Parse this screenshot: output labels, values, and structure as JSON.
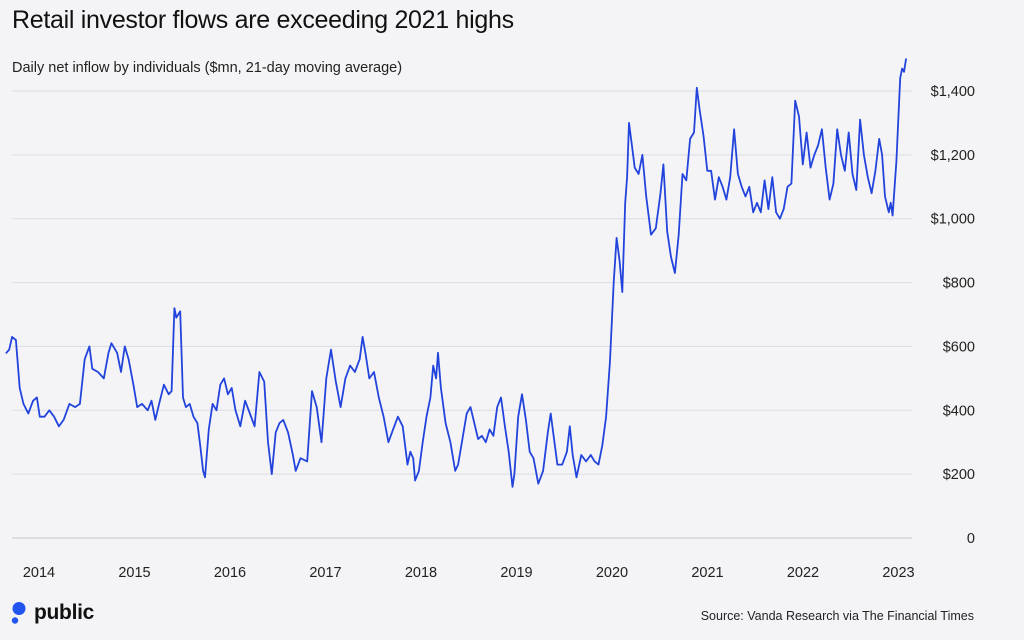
{
  "title": "Retail investor flows are exceeding 2021 highs",
  "subtitle": "Daily net inflow by individuals ($mn, 21-day moving average)",
  "source": "Source: Vanda Research via The Financial Times",
  "brand": {
    "name": "public",
    "color": "#2255f0"
  },
  "chart_data": {
    "type": "line",
    "title": "Retail investor flows are exceeding 2021 highs",
    "subtitle": "Daily net inflow by individuals ($mn, 21-day moving average)",
    "xlabel": "",
    "ylabel": "",
    "ylim": [
      0,
      1500
    ],
    "xlim": [
      2013.7,
      2023.2
    ],
    "grid": true,
    "legend": "none",
    "line_color": "#2244dd",
    "y_ticks": [
      0,
      200,
      400,
      600,
      800,
      1000,
      1200,
      1400
    ],
    "y_tick_labels": [
      "0",
      "$200",
      "$400",
      "$600",
      "$800",
      "$1,000",
      "$1,200",
      "$1,400"
    ],
    "x_ticks": [
      2014,
      2015,
      2016,
      2017,
      2018,
      2019,
      2020,
      2021,
      2022,
      2023
    ],
    "x_tick_labels": [
      "2014",
      "2015",
      "2016",
      "2017",
      "2018",
      "2019",
      "2020",
      "2021",
      "2022",
      "2023"
    ],
    "series": [
      {
        "points": [
          [
            2013.7,
            580
          ],
          [
            2013.73,
            590
          ],
          [
            2013.76,
            630
          ],
          [
            2013.8,
            620
          ],
          [
            2013.84,
            470
          ],
          [
            2013.88,
            420
          ],
          [
            2013.93,
            390
          ],
          [
            2013.98,
            430
          ],
          [
            2014.02,
            440
          ],
          [
            2014.05,
            380
          ],
          [
            2014.1,
            380
          ],
          [
            2014.15,
            400
          ],
          [
            2014.2,
            380
          ],
          [
            2014.25,
            350
          ],
          [
            2014.3,
            370
          ],
          [
            2014.36,
            420
          ],
          [
            2014.42,
            410
          ],
          [
            2014.47,
            420
          ],
          [
            2014.52,
            560
          ],
          [
            2014.57,
            600
          ],
          [
            2014.6,
            530
          ],
          [
            2014.66,
            520
          ],
          [
            2014.72,
            500
          ],
          [
            2014.77,
            580
          ],
          [
            2014.8,
            610
          ],
          [
            2014.86,
            580
          ],
          [
            2014.9,
            520
          ],
          [
            2014.94,
            600
          ],
          [
            2014.98,
            560
          ],
          [
            2015.03,
            480
          ],
          [
            2015.07,
            410
          ],
          [
            2015.12,
            420
          ],
          [
            2015.18,
            400
          ],
          [
            2015.22,
            430
          ],
          [
            2015.26,
            370
          ],
          [
            2015.3,
            420
          ],
          [
            2015.35,
            480
          ],
          [
            2015.4,
            450
          ],
          [
            2015.43,
            460
          ],
          [
            2015.46,
            720
          ],
          [
            2015.48,
            690
          ],
          [
            2015.52,
            710
          ],
          [
            2015.55,
            440
          ],
          [
            2015.58,
            410
          ],
          [
            2015.62,
            420
          ],
          [
            2015.66,
            380
          ],
          [
            2015.7,
            360
          ],
          [
            2015.73,
            290
          ],
          [
            2015.76,
            210
          ],
          [
            2015.78,
            190
          ],
          [
            2015.82,
            340
          ],
          [
            2015.86,
            420
          ],
          [
            2015.9,
            400
          ],
          [
            2015.94,
            480
          ],
          [
            2015.98,
            500
          ],
          [
            2016.02,
            450
          ],
          [
            2016.06,
            470
          ],
          [
            2016.1,
            400
          ],
          [
            2016.15,
            350
          ],
          [
            2016.2,
            430
          ],
          [
            2016.25,
            390
          ],
          [
            2016.3,
            350
          ],
          [
            2016.35,
            520
          ],
          [
            2016.4,
            490
          ],
          [
            2016.44,
            300
          ],
          [
            2016.48,
            200
          ],
          [
            2016.52,
            330
          ],
          [
            2016.56,
            360
          ],
          [
            2016.6,
            370
          ],
          [
            2016.65,
            330
          ],
          [
            2016.7,
            260
          ],
          [
            2016.73,
            210
          ],
          [
            2016.78,
            250
          ],
          [
            2016.85,
            240
          ],
          [
            2016.9,
            460
          ],
          [
            2016.95,
            410
          ],
          [
            2017.0,
            300
          ],
          [
            2017.05,
            500
          ],
          [
            2017.1,
            590
          ],
          [
            2017.15,
            490
          ],
          [
            2017.2,
            410
          ],
          [
            2017.25,
            500
          ],
          [
            2017.3,
            540
          ],
          [
            2017.35,
            520
          ],
          [
            2017.4,
            560
          ],
          [
            2017.43,
            630
          ],
          [
            2017.46,
            580
          ],
          [
            2017.5,
            500
          ],
          [
            2017.55,
            520
          ],
          [
            2017.6,
            440
          ],
          [
            2017.65,
            380
          ],
          [
            2017.7,
            300
          ],
          [
            2017.75,
            340
          ],
          [
            2017.8,
            380
          ],
          [
            2017.85,
            350
          ],
          [
            2017.9,
            230
          ],
          [
            2017.93,
            270
          ],
          [
            2017.96,
            250
          ],
          [
            2017.98,
            180
          ],
          [
            2018.02,
            210
          ],
          [
            2018.06,
            300
          ],
          [
            2018.1,
            380
          ],
          [
            2018.14,
            440
          ],
          [
            2018.17,
            540
          ],
          [
            2018.2,
            500
          ],
          [
            2018.22,
            580
          ],
          [
            2018.25,
            470
          ],
          [
            2018.3,
            360
          ],
          [
            2018.35,
            300
          ],
          [
            2018.4,
            210
          ],
          [
            2018.43,
            230
          ],
          [
            2018.47,
            300
          ],
          [
            2018.52,
            390
          ],
          [
            2018.56,
            410
          ],
          [
            2018.6,
            360
          ],
          [
            2018.64,
            310
          ],
          [
            2018.68,
            320
          ],
          [
            2018.72,
            300
          ],
          [
            2018.76,
            340
          ],
          [
            2018.8,
            320
          ],
          [
            2018.84,
            410
          ],
          [
            2018.88,
            440
          ],
          [
            2018.92,
            350
          ],
          [
            2018.96,
            270
          ],
          [
            2019.0,
            160
          ],
          [
            2019.02,
            200
          ],
          [
            2019.06,
            380
          ],
          [
            2019.1,
            450
          ],
          [
            2019.14,
            370
          ],
          [
            2019.18,
            270
          ],
          [
            2019.22,
            250
          ],
          [
            2019.27,
            170
          ],
          [
            2019.32,
            210
          ],
          [
            2019.37,
            330
          ],
          [
            2019.4,
            390
          ],
          [
            2019.43,
            320
          ],
          [
            2019.47,
            230
          ],
          [
            2019.52,
            230
          ],
          [
            2019.57,
            270
          ],
          [
            2019.6,
            350
          ],
          [
            2019.63,
            260
          ],
          [
            2019.67,
            190
          ],
          [
            2019.72,
            260
          ],
          [
            2019.77,
            240
          ],
          [
            2019.82,
            260
          ],
          [
            2019.86,
            240
          ],
          [
            2019.9,
            230
          ],
          [
            2019.94,
            290
          ],
          [
            2019.98,
            380
          ],
          [
            2020.02,
            550
          ],
          [
            2020.06,
            800
          ],
          [
            2020.09,
            940
          ],
          [
            2020.12,
            870
          ],
          [
            2020.15,
            770
          ],
          [
            2020.18,
            1050
          ],
          [
            2020.2,
            1130
          ],
          [
            2020.22,
            1300
          ],
          [
            2020.25,
            1230
          ],
          [
            2020.28,
            1160
          ],
          [
            2020.32,
            1140
          ],
          [
            2020.36,
            1200
          ],
          [
            2020.4,
            1070
          ],
          [
            2020.45,
            950
          ],
          [
            2020.5,
            970
          ],
          [
            2020.55,
            1080
          ],
          [
            2020.58,
            1170
          ],
          [
            2020.62,
            960
          ],
          [
            2020.66,
            880
          ],
          [
            2020.7,
            830
          ],
          [
            2020.74,
            950
          ],
          [
            2020.78,
            1140
          ],
          [
            2020.82,
            1120
          ],
          [
            2020.86,
            1250
          ],
          [
            2020.9,
            1270
          ],
          [
            2020.93,
            1410
          ],
          [
            2020.96,
            1340
          ],
          [
            2021.0,
            1260
          ],
          [
            2021.04,
            1150
          ],
          [
            2021.08,
            1150
          ],
          [
            2021.12,
            1060
          ],
          [
            2021.16,
            1130
          ],
          [
            2021.2,
            1100
          ],
          [
            2021.24,
            1060
          ],
          [
            2021.28,
            1130
          ],
          [
            2021.32,
            1280
          ],
          [
            2021.36,
            1140
          ],
          [
            2021.4,
            1100
          ],
          [
            2021.44,
            1070
          ],
          [
            2021.48,
            1100
          ],
          [
            2021.52,
            1020
          ],
          [
            2021.56,
            1050
          ],
          [
            2021.6,
            1020
          ],
          [
            2021.64,
            1120
          ],
          [
            2021.68,
            1030
          ],
          [
            2021.72,
            1130
          ],
          [
            2021.76,
            1020
          ],
          [
            2021.8,
            1000
          ],
          [
            2021.84,
            1030
          ],
          [
            2021.88,
            1100
          ],
          [
            2021.92,
            1110
          ],
          [
            2021.96,
            1370
          ],
          [
            2022.0,
            1320
          ],
          [
            2022.04,
            1170
          ],
          [
            2022.08,
            1270
          ],
          [
            2022.12,
            1160
          ],
          [
            2022.16,
            1200
          ],
          [
            2022.2,
            1230
          ],
          [
            2022.24,
            1280
          ],
          [
            2022.28,
            1160
          ],
          [
            2022.32,
            1060
          ],
          [
            2022.36,
            1110
          ],
          [
            2022.4,
            1280
          ],
          [
            2022.44,
            1200
          ],
          [
            2022.48,
            1150
          ],
          [
            2022.52,
            1270
          ],
          [
            2022.56,
            1140
          ],
          [
            2022.6,
            1090
          ],
          [
            2022.64,
            1310
          ],
          [
            2022.68,
            1200
          ],
          [
            2022.72,
            1130
          ],
          [
            2022.76,
            1080
          ],
          [
            2022.8,
            1150
          ],
          [
            2022.84,
            1250
          ],
          [
            2022.87,
            1200
          ],
          [
            2022.9,
            1070
          ],
          [
            2022.94,
            1020
          ],
          [
            2022.96,
            1050
          ],
          [
            2022.98,
            1010
          ],
          [
            2023.02,
            1180
          ],
          [
            2023.06,
            1440
          ],
          [
            2023.08,
            1470
          ],
          [
            2023.1,
            1460
          ],
          [
            2023.12,
            1500
          ]
        ]
      }
    ]
  }
}
